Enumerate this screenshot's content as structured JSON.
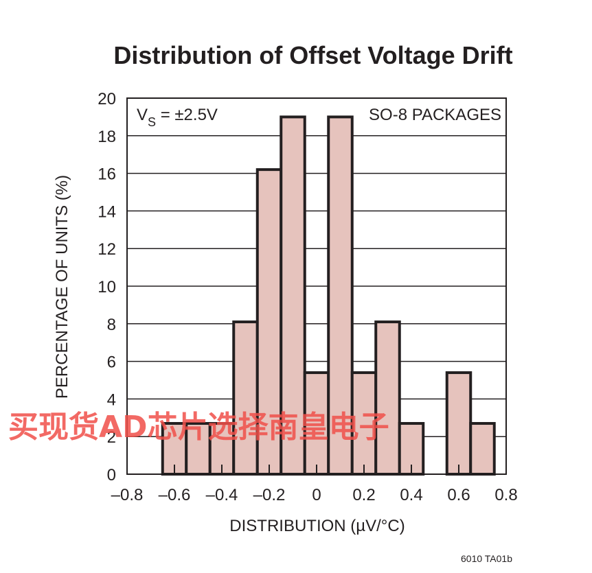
{
  "chart_data": {
    "type": "bar",
    "title": "Distribution of Offset Voltage Drift",
    "xlabel": "DISTRIBUTION (µV/°C)",
    "ylabel": "PERCENTAGE OF UNITS (%)",
    "xlim": [
      -0.8,
      0.8
    ],
    "ylim": [
      0,
      20
    ],
    "xticks": [
      "–0.8",
      "–0.6",
      "–0.4",
      "–0.2",
      "0",
      "0.2",
      "0.4",
      "0.6",
      "0.8"
    ],
    "yticks": [
      "0",
      "2",
      "4",
      "6",
      "8",
      "10",
      "12",
      "14",
      "16",
      "18",
      "20"
    ],
    "bin_width": 0.1,
    "bins": [
      {
        "center": -0.6,
        "value": 2.7
      },
      {
        "center": -0.5,
        "value": 2.7
      },
      {
        "center": -0.4,
        "value": 2.7
      },
      {
        "center": -0.3,
        "value": 8.1
      },
      {
        "center": -0.2,
        "value": 16.2
      },
      {
        "center": -0.1,
        "value": 19.0
      },
      {
        "center": 0.0,
        "value": 5.4
      },
      {
        "center": 0.1,
        "value": 19.0
      },
      {
        "center": 0.2,
        "value": 5.4
      },
      {
        "center": 0.3,
        "value": 8.1
      },
      {
        "center": 0.4,
        "value": 2.7
      },
      {
        "center": 0.6,
        "value": 5.4
      },
      {
        "center": 0.7,
        "value": 2.7
      }
    ],
    "grid": true,
    "bar_fill": "#e6c3bd",
    "bar_edge": "#231f20",
    "annotations": {
      "vs_prefix": "V",
      "vs_sub": "S",
      "vs_rest": " = ±2.5V",
      "package": "SO-8 PACKAGES"
    }
  },
  "figure_code": "6010 TA01b",
  "watermark": "买现货AD芯片选择南皇电子"
}
